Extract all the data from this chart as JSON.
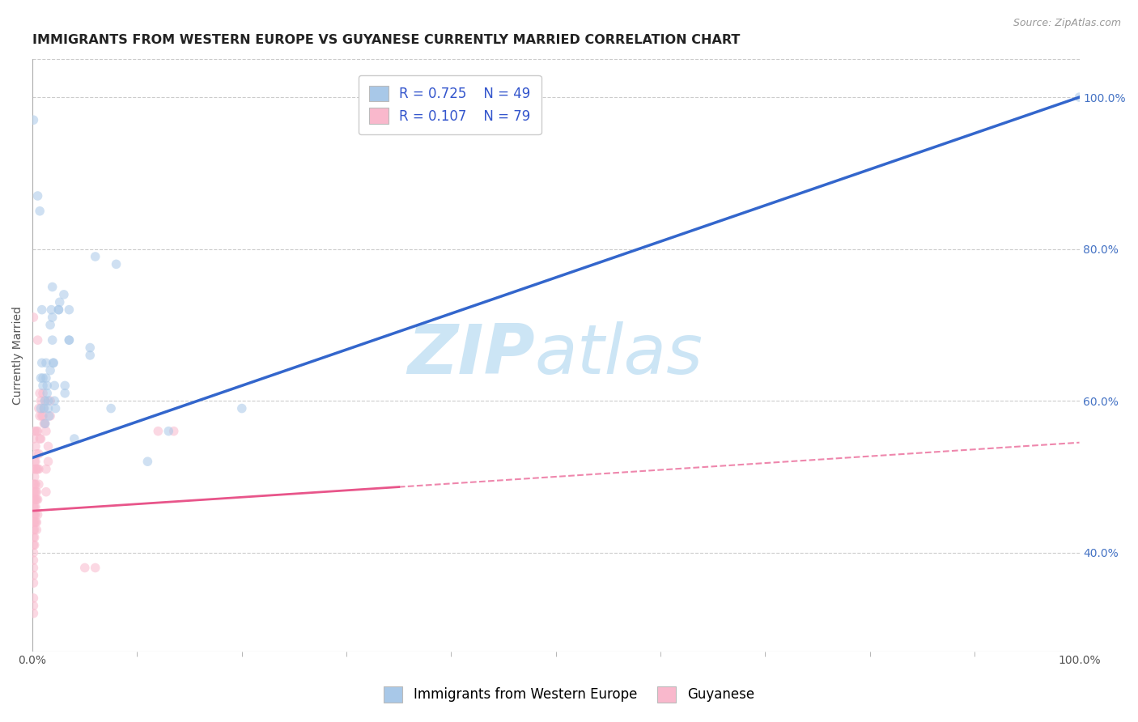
{
  "title": "IMMIGRANTS FROM WESTERN EUROPE VS GUYANESE CURRENTLY MARRIED CORRELATION CHART",
  "source": "Source: ZipAtlas.com",
  "ylabel": "Currently Married",
  "legend_blue_R": "0.725",
  "legend_blue_N": "49",
  "legend_pink_R": "0.107",
  "legend_pink_N": "79",
  "legend_label_blue": "Immigrants from Western Europe",
  "legend_label_pink": "Guyanese",
  "blue_scatter": [
    [
      0.001,
      0.97
    ],
    [
      0.005,
      0.87
    ],
    [
      0.007,
      0.85
    ],
    [
      0.008,
      0.63
    ],
    [
      0.008,
      0.59
    ],
    [
      0.009,
      0.72
    ],
    [
      0.009,
      0.65
    ],
    [
      0.01,
      0.63
    ],
    [
      0.01,
      0.62
    ],
    [
      0.011,
      0.59
    ],
    [
      0.012,
      0.6
    ],
    [
      0.012,
      0.57
    ],
    [
      0.013,
      0.65
    ],
    [
      0.013,
      0.63
    ],
    [
      0.014,
      0.62
    ],
    [
      0.014,
      0.61
    ],
    [
      0.015,
      0.6
    ],
    [
      0.015,
      0.59
    ],
    [
      0.016,
      0.58
    ],
    [
      0.017,
      0.64
    ],
    [
      0.017,
      0.7
    ],
    [
      0.018,
      0.72
    ],
    [
      0.019,
      0.75
    ],
    [
      0.019,
      0.71
    ],
    [
      0.019,
      0.68
    ],
    [
      0.02,
      0.65
    ],
    [
      0.02,
      0.65
    ],
    [
      0.021,
      0.62
    ],
    [
      0.021,
      0.6
    ],
    [
      0.022,
      0.59
    ],
    [
      0.025,
      0.72
    ],
    [
      0.025,
      0.72
    ],
    [
      0.026,
      0.73
    ],
    [
      0.03,
      0.74
    ],
    [
      0.031,
      0.62
    ],
    [
      0.031,
      0.61
    ],
    [
      0.035,
      0.72
    ],
    [
      0.035,
      0.68
    ],
    [
      0.035,
      0.68
    ],
    [
      0.04,
      0.55
    ],
    [
      0.055,
      0.67
    ],
    [
      0.055,
      0.66
    ],
    [
      0.06,
      0.79
    ],
    [
      0.075,
      0.59
    ],
    [
      0.08,
      0.78
    ],
    [
      0.11,
      0.52
    ],
    [
      0.13,
      0.56
    ],
    [
      0.2,
      0.59
    ],
    [
      1.0,
      1.0
    ]
  ],
  "pink_scatter": [
    [
      0.001,
      0.71
    ],
    [
      0.001,
      0.55
    ],
    [
      0.001,
      0.51
    ],
    [
      0.001,
      0.49
    ],
    [
      0.001,
      0.48
    ],
    [
      0.001,
      0.47
    ],
    [
      0.001,
      0.46
    ],
    [
      0.001,
      0.45
    ],
    [
      0.001,
      0.44
    ],
    [
      0.001,
      0.43
    ],
    [
      0.001,
      0.42
    ],
    [
      0.001,
      0.41
    ],
    [
      0.001,
      0.4
    ],
    [
      0.001,
      0.39
    ],
    [
      0.001,
      0.38
    ],
    [
      0.001,
      0.37
    ],
    [
      0.001,
      0.36
    ],
    [
      0.001,
      0.34
    ],
    [
      0.001,
      0.33
    ],
    [
      0.001,
      0.32
    ],
    [
      0.002,
      0.56
    ],
    [
      0.002,
      0.52
    ],
    [
      0.002,
      0.5
    ],
    [
      0.002,
      0.49
    ],
    [
      0.002,
      0.48
    ],
    [
      0.002,
      0.47
    ],
    [
      0.002,
      0.46
    ],
    [
      0.002,
      0.45
    ],
    [
      0.002,
      0.44
    ],
    [
      0.002,
      0.43
    ],
    [
      0.002,
      0.42
    ],
    [
      0.002,
      0.41
    ],
    [
      0.003,
      0.54
    ],
    [
      0.003,
      0.52
    ],
    [
      0.003,
      0.51
    ],
    [
      0.003,
      0.49
    ],
    [
      0.003,
      0.48
    ],
    [
      0.003,
      0.47
    ],
    [
      0.003,
      0.46
    ],
    [
      0.003,
      0.45
    ],
    [
      0.003,
      0.44
    ],
    [
      0.004,
      0.56
    ],
    [
      0.004,
      0.53
    ],
    [
      0.004,
      0.51
    ],
    [
      0.004,
      0.48
    ],
    [
      0.004,
      0.47
    ],
    [
      0.004,
      0.44
    ],
    [
      0.004,
      0.43
    ],
    [
      0.005,
      0.68
    ],
    [
      0.005,
      0.56
    ],
    [
      0.005,
      0.51
    ],
    [
      0.005,
      0.47
    ],
    [
      0.005,
      0.45
    ],
    [
      0.006,
      0.59
    ],
    [
      0.006,
      0.53
    ],
    [
      0.006,
      0.51
    ],
    [
      0.006,
      0.49
    ],
    [
      0.007,
      0.61
    ],
    [
      0.007,
      0.58
    ],
    [
      0.007,
      0.55
    ],
    [
      0.008,
      0.6
    ],
    [
      0.008,
      0.55
    ],
    [
      0.009,
      0.58
    ],
    [
      0.01,
      0.61
    ],
    [
      0.01,
      0.58
    ],
    [
      0.011,
      0.59
    ],
    [
      0.011,
      0.57
    ],
    [
      0.012,
      0.6
    ],
    [
      0.012,
      0.57
    ],
    [
      0.013,
      0.56
    ],
    [
      0.013,
      0.51
    ],
    [
      0.013,
      0.48
    ],
    [
      0.015,
      0.54
    ],
    [
      0.015,
      0.52
    ],
    [
      0.017,
      0.6
    ],
    [
      0.017,
      0.58
    ],
    [
      0.05,
      0.38
    ],
    [
      0.06,
      0.38
    ],
    [
      0.12,
      0.56
    ],
    [
      0.135,
      0.56
    ]
  ],
  "blue_line_x": [
    0.0,
    1.0
  ],
  "blue_line_y": [
    0.525,
    1.0
  ],
  "pink_line_x": [
    0.0,
    1.0
  ],
  "pink_line_y": [
    0.455,
    0.545
  ],
  "background_color": "#ffffff",
  "scatter_alpha": 0.55,
  "scatter_size": 70,
  "blue_color": "#a8c8e8",
  "pink_color": "#f9b8cc",
  "blue_line_color": "#3366cc",
  "pink_line_color": "#e8558a",
  "grid_color": "#cccccc",
  "watermark_zip": "ZIP",
  "watermark_atlas": "atlas",
  "watermark_color": "#cce5f5",
  "title_fontsize": 11.5,
  "axis_label_fontsize": 10,
  "tick_fontsize": 10,
  "source_fontsize": 9,
  "legend_fontsize": 12,
  "right_axis_color": "#4472c4",
  "ylim_min": 0.27,
  "ylim_max": 1.05,
  "xlim_min": 0.0,
  "xlim_max": 1.0
}
